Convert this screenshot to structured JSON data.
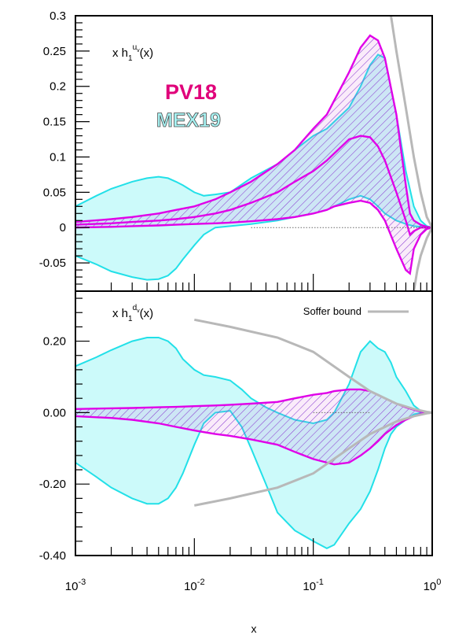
{
  "chart_data": {
    "type": "area",
    "shared_x": {
      "scale": "log",
      "xlim": [
        0.001,
        1
      ],
      "xlabel": "x",
      "tick_labels": [
        {
          "base": "10",
          "exp": "-3"
        },
        {
          "base": "10",
          "exp": "-2"
        },
        {
          "base": "10",
          "exp": "-1"
        },
        {
          "base": "10",
          "exp": "0"
        }
      ]
    },
    "panels": [
      {
        "id": "top",
        "ylim": [
          -0.09,
          0.3
        ],
        "y_tick_labels": [
          "0.3",
          "0.25",
          "0.2",
          "0.15",
          "0.1",
          "0.05",
          "0",
          "-0.05"
        ],
        "y_tick_values": [
          0.3,
          0.25,
          0.2,
          0.15,
          0.1,
          0.05,
          0,
          -0.05
        ],
        "label": {
          "prefix": "x h",
          "sub": "1",
          "sup_main": "u",
          "sup_sub": "v",
          "suffix": "(x)"
        },
        "legend_texts": [
          {
            "text": "PV18",
            "color": "#e0007a"
          },
          {
            "text": "MEX19",
            "color": "#a8f4f4"
          }
        ],
        "bands": [
          {
            "name": "MEX19",
            "fill": "#ccfafa",
            "stroke": "#22e0e8",
            "x": [
              0.001,
              0.0015,
              0.002,
              0.003,
              0.004,
              0.005,
              0.006,
              0.007,
              0.008,
              0.01,
              0.012,
              0.015,
              0.02,
              0.03,
              0.05,
              0.07,
              0.1,
              0.13,
              0.15,
              0.2,
              0.25,
              0.3,
              0.35,
              0.4,
              0.5,
              0.6,
              0.7,
              0.8,
              0.9,
              1.0
            ],
            "upper": [
              0.03,
              0.045,
              0.055,
              0.065,
              0.07,
              0.072,
              0.07,
              0.065,
              0.06,
              0.05,
              0.045,
              0.047,
              0.05,
              0.07,
              0.09,
              0.11,
              0.13,
              0.14,
              0.15,
              0.17,
              0.2,
              0.23,
              0.245,
              0.24,
              0.16,
              0.08,
              0.03,
              0.01,
              0.002,
              0.0
            ],
            "lower": [
              -0.04,
              -0.052,
              -0.062,
              -0.07,
              -0.074,
              -0.073,
              -0.068,
              -0.058,
              -0.045,
              -0.025,
              -0.01,
              0.0,
              0.002,
              0.005,
              0.01,
              0.015,
              0.02,
              0.025,
              0.03,
              0.04,
              0.045,
              0.04,
              0.03,
              0.02,
              0.01,
              0.005,
              0.002,
              0.001,
              0.0,
              0.0
            ]
          },
          {
            "name": "PV18",
            "fill": "#d55ad5",
            "stroke": "#e000e8",
            "x": [
              0.001,
              0.002,
              0.003,
              0.005,
              0.007,
              0.01,
              0.015,
              0.02,
              0.03,
              0.05,
              0.07,
              0.1,
              0.13,
              0.15,
              0.2,
              0.25,
              0.3,
              0.35,
              0.4,
              0.5,
              0.6,
              0.65,
              0.7,
              0.8,
              0.9,
              1.0
            ],
            "upper": [
              0.008,
              0.012,
              0.015,
              0.02,
              0.025,
              0.03,
              0.04,
              0.05,
              0.065,
              0.09,
              0.11,
              0.14,
              0.16,
              0.18,
              0.22,
              0.255,
              0.272,
              0.265,
              0.24,
              0.16,
              0.06,
              0.02,
              0.01,
              0.004,
              0.001,
              0.0
            ],
            "center": [
              0.004,
              0.006,
              0.008,
              0.01,
              0.012,
              0.015,
              0.02,
              0.025,
              0.035,
              0.05,
              0.065,
              0.08,
              0.095,
              0.105,
              0.125,
              0.13,
              0.128,
              0.115,
              0.095,
              0.05,
              0.01,
              -0.01,
              -0.005,
              0.0,
              0.0,
              0.0
            ],
            "lower": [
              0.0,
              0.001,
              0.002,
              0.003,
              0.004,
              0.005,
              0.006,
              0.007,
              0.009,
              0.012,
              0.015,
              0.02,
              0.025,
              0.03,
              0.035,
              0.038,
              0.035,
              0.025,
              0.01,
              -0.03,
              -0.06,
              -0.065,
              -0.03,
              -0.01,
              -0.002,
              0.0
            ]
          }
        ],
        "bound_upper": {
          "name": "Soffer bound",
          "color": "#b8b8b8",
          "x": [
            0.45,
            0.5,
            0.6,
            0.7,
            0.8,
            0.9,
            1.0
          ],
          "y": [
            0.3,
            0.25,
            0.17,
            0.1,
            0.05,
            0.015,
            0.0
          ]
        },
        "bound_lower": {
          "name": "Soffer bound",
          "color": "#b8b8b8",
          "x": [
            0.7,
            0.75,
            0.8,
            0.9,
            1.0
          ],
          "y": [
            -0.09,
            -0.06,
            -0.04,
            -0.015,
            0.0
          ]
        }
      },
      {
        "id": "bottom",
        "ylim": [
          -0.4,
          0.34
        ],
        "y_tick_labels": [
          "0.20",
          "0.00",
          "-0.20",
          "-0.40"
        ],
        "y_tick_values": [
          0.2,
          0.0,
          -0.2,
          -0.4
        ],
        "label": {
          "prefix": "x h",
          "sub": "1",
          "sup_main": "d",
          "sup_sub": "v",
          "suffix": "(x)"
        },
        "legend": {
          "text": "Soffer bound",
          "color": "#b8b8b8"
        },
        "bands": [
          {
            "name": "MEX19",
            "fill": "#ccfafa",
            "stroke": "#22e0e8",
            "x": [
              0.001,
              0.0015,
              0.002,
              0.003,
              0.004,
              0.005,
              0.006,
              0.007,
              0.008,
              0.01,
              0.012,
              0.015,
              0.02,
              0.025,
              0.03,
              0.04,
              0.05,
              0.07,
              0.1,
              0.13,
              0.15,
              0.2,
              0.25,
              0.3,
              0.35,
              0.4,
              0.45,
              0.5,
              0.6,
              0.7,
              0.8,
              0.9,
              1.0
            ],
            "upper": [
              0.13,
              0.155,
              0.175,
              0.2,
              0.21,
              0.21,
              0.2,
              0.18,
              0.15,
              0.12,
              0.105,
              0.1,
              0.09,
              0.065,
              0.04,
              0.015,
              0.0,
              -0.02,
              -0.03,
              -0.02,
              0.0,
              0.08,
              0.17,
              0.2,
              0.18,
              0.17,
              0.14,
              0.1,
              0.06,
              0.02,
              0.005,
              0.001,
              0.0
            ],
            "lower": [
              -0.14,
              -0.18,
              -0.21,
              -0.24,
              -0.255,
              -0.255,
              -0.24,
              -0.21,
              -0.17,
              -0.09,
              -0.03,
              0.0,
              0.005,
              -0.04,
              -0.1,
              -0.2,
              -0.28,
              -0.33,
              -0.36,
              -0.38,
              -0.37,
              -0.31,
              -0.27,
              -0.22,
              -0.16,
              -0.1,
              -0.06,
              -0.04,
              -0.02,
              -0.005,
              -0.001,
              0.0,
              0.0
            ]
          },
          {
            "name": "PV18",
            "fill": "#d55ad5",
            "stroke": "#e000e8",
            "x": [
              0.001,
              0.002,
              0.003,
              0.005,
              0.007,
              0.01,
              0.015,
              0.02,
              0.03,
              0.05,
              0.07,
              0.1,
              0.13,
              0.15,
              0.2,
              0.25,
              0.3,
              0.35,
              0.4,
              0.5,
              0.6,
              0.7,
              0.8,
              0.9,
              1.0
            ],
            "upper": [
              0.01,
              0.012,
              0.013,
              0.015,
              0.016,
              0.018,
              0.02,
              0.022,
              0.025,
              0.03,
              0.04,
              0.05,
              0.055,
              0.06,
              0.065,
              0.065,
              0.06,
              0.05,
              0.04,
              0.025,
              0.015,
              0.008,
              0.003,
              0.001,
              0.0
            ],
            "lower": [
              -0.01,
              -0.015,
              -0.02,
              -0.03,
              -0.04,
              -0.05,
              -0.06,
              -0.065,
              -0.075,
              -0.09,
              -0.11,
              -0.13,
              -0.14,
              -0.145,
              -0.14,
              -0.12,
              -0.1,
              -0.08,
              -0.06,
              -0.035,
              -0.02,
              -0.01,
              -0.004,
              -0.001,
              0.0
            ]
          }
        ],
        "bound_upper": {
          "name": "Soffer bound",
          "color": "#b8b8b8",
          "x": [
            0.01,
            0.02,
            0.05,
            0.1,
            0.2,
            0.3,
            0.5,
            0.7,
            0.9,
            1.0
          ],
          "y": [
            0.26,
            0.24,
            0.21,
            0.17,
            0.1,
            0.06,
            0.025,
            0.01,
            0.002,
            0.0
          ]
        },
        "bound_lower": {
          "name": "Soffer bound",
          "color": "#b8b8b8",
          "x": [
            0.01,
            0.02,
            0.05,
            0.1,
            0.2,
            0.3,
            0.5,
            0.7,
            0.9,
            1.0
          ],
          "y": [
            -0.26,
            -0.24,
            -0.21,
            -0.17,
            -0.1,
            -0.06,
            -0.025,
            -0.01,
            -0.002,
            0.0
          ]
        },
        "zero_line": {
          "x_from": 0.1,
          "x_to": 0.3
        }
      }
    ]
  }
}
